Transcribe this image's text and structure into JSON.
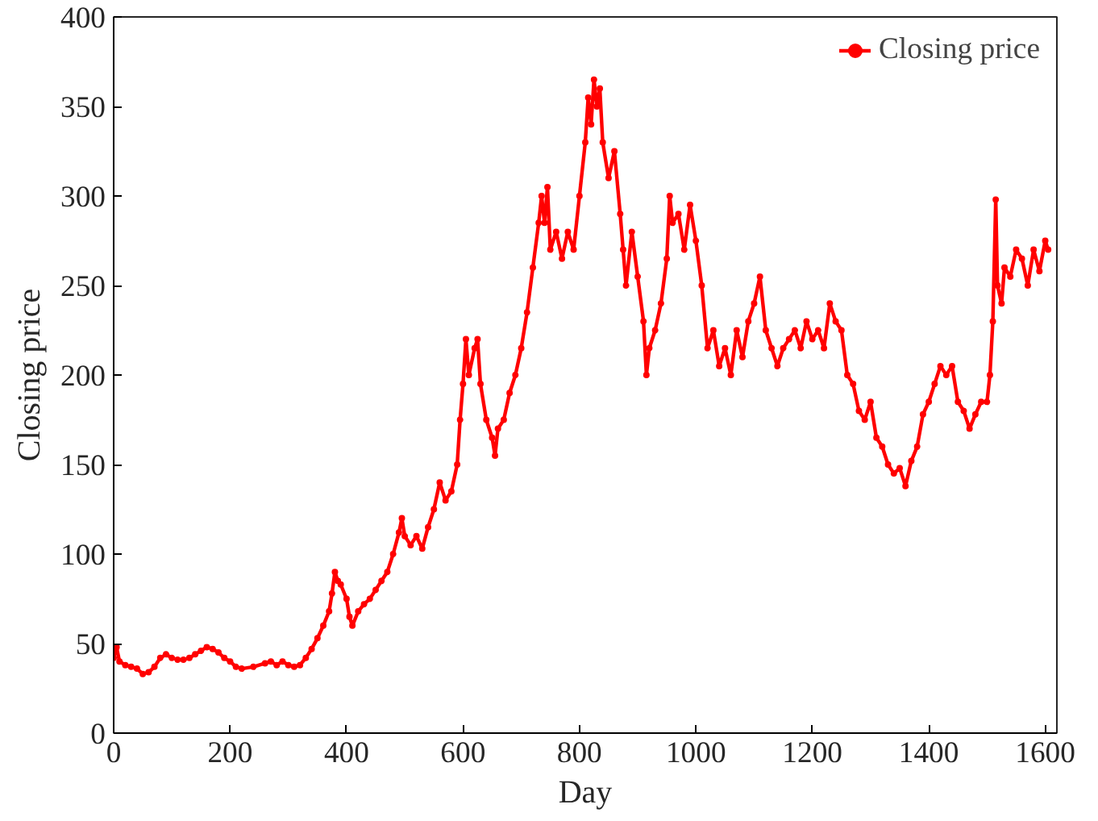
{
  "chart_data": {
    "type": "line",
    "xlabel": "Day",
    "ylabel": "Closing price",
    "xlim": [
      0,
      1620
    ],
    "ylim": [
      0,
      400
    ],
    "xticks": [
      0,
      200,
      400,
      600,
      800,
      1000,
      1200,
      1400,
      1600
    ],
    "yticks": [
      0,
      50,
      100,
      150,
      200,
      250,
      300,
      350,
      400
    ],
    "grid": false,
    "legend": "top right",
    "marker": "circle",
    "line_style": "solid",
    "series": [
      {
        "name": "Closing price",
        "color": "#ff0000",
        "x": [
          0,
          5,
          10,
          20,
          30,
          40,
          50,
          60,
          70,
          80,
          90,
          100,
          110,
          120,
          130,
          140,
          150,
          160,
          170,
          180,
          190,
          200,
          210,
          220,
          240,
          260,
          270,
          280,
          290,
          300,
          310,
          320,
          330,
          340,
          350,
          360,
          370,
          375,
          380,
          385,
          390,
          400,
          405,
          410,
          420,
          430,
          440,
          450,
          460,
          470,
          480,
          490,
          495,
          500,
          510,
          520,
          530,
          540,
          550,
          560,
          570,
          580,
          590,
          595,
          600,
          605,
          610,
          620,
          625,
          630,
          640,
          650,
          655,
          660,
          670,
          680,
          690,
          700,
          710,
          720,
          730,
          735,
          740,
          745,
          750,
          760,
          770,
          780,
          790,
          800,
          810,
          815,
          820,
          825,
          830,
          835,
          840,
          850,
          860,
          870,
          875,
          880,
          890,
          900,
          910,
          915,
          920,
          930,
          940,
          950,
          955,
          960,
          970,
          980,
          990,
          1000,
          1010,
          1020,
          1030,
          1040,
          1050,
          1060,
          1070,
          1080,
          1090,
          1100,
          1110,
          1120,
          1130,
          1140,
          1150,
          1160,
          1170,
          1180,
          1190,
          1200,
          1210,
          1220,
          1230,
          1240,
          1250,
          1260,
          1270,
          1280,
          1290,
          1300,
          1310,
          1320,
          1330,
          1340,
          1350,
          1360,
          1370,
          1380,
          1390,
          1400,
          1410,
          1420,
          1430,
          1440,
          1450,
          1460,
          1470,
          1480,
          1490,
          1500,
          1505,
          1510,
          1515,
          1518,
          1525,
          1530,
          1540,
          1550,
          1560,
          1570,
          1580,
          1590,
          1600,
          1605
        ],
        "values": [
          42,
          48,
          40,
          38,
          37,
          36,
          33,
          34,
          37,
          42,
          44,
          42,
          41,
          41,
          42,
          44,
          46,
          48,
          47,
          45,
          42,
          40,
          37,
          36,
          37,
          39,
          40,
          38,
          40,
          38,
          37,
          38,
          42,
          47,
          53,
          60,
          68,
          78,
          90,
          85,
          83,
          75,
          65,
          60,
          68,
          72,
          75,
          80,
          85,
          90,
          100,
          112,
          120,
          110,
          105,
          110,
          103,
          115,
          125,
          140,
          130,
          135,
          150,
          175,
          195,
          220,
          200,
          215,
          220,
          195,
          175,
          165,
          155,
          170,
          175,
          190,
          200,
          215,
          235,
          260,
          285,
          300,
          285,
          305,
          270,
          280,
          265,
          280,
          270,
          300,
          330,
          355,
          340,
          365,
          350,
          360,
          330,
          310,
          325,
          290,
          270,
          250,
          280,
          255,
          230,
          200,
          215,
          225,
          240,
          265,
          300,
          285,
          290,
          270,
          295,
          275,
          250,
          215,
          225,
          205,
          215,
          200,
          225,
          210,
          230,
          240,
          255,
          225,
          215,
          205,
          215,
          220,
          225,
          215,
          230,
          220,
          225,
          215,
          240,
          230,
          225,
          200,
          195,
          180,
          175,
          185,
          165,
          160,
          150,
          145,
          148,
          138,
          152,
          160,
          178,
          185,
          195,
          205,
          200,
          205,
          185,
          180,
          170,
          178,
          185,
          185,
          200,
          230,
          298,
          250,
          240,
          260,
          255,
          270,
          265,
          250,
          270,
          258,
          275,
          270
        ]
      }
    ]
  }
}
